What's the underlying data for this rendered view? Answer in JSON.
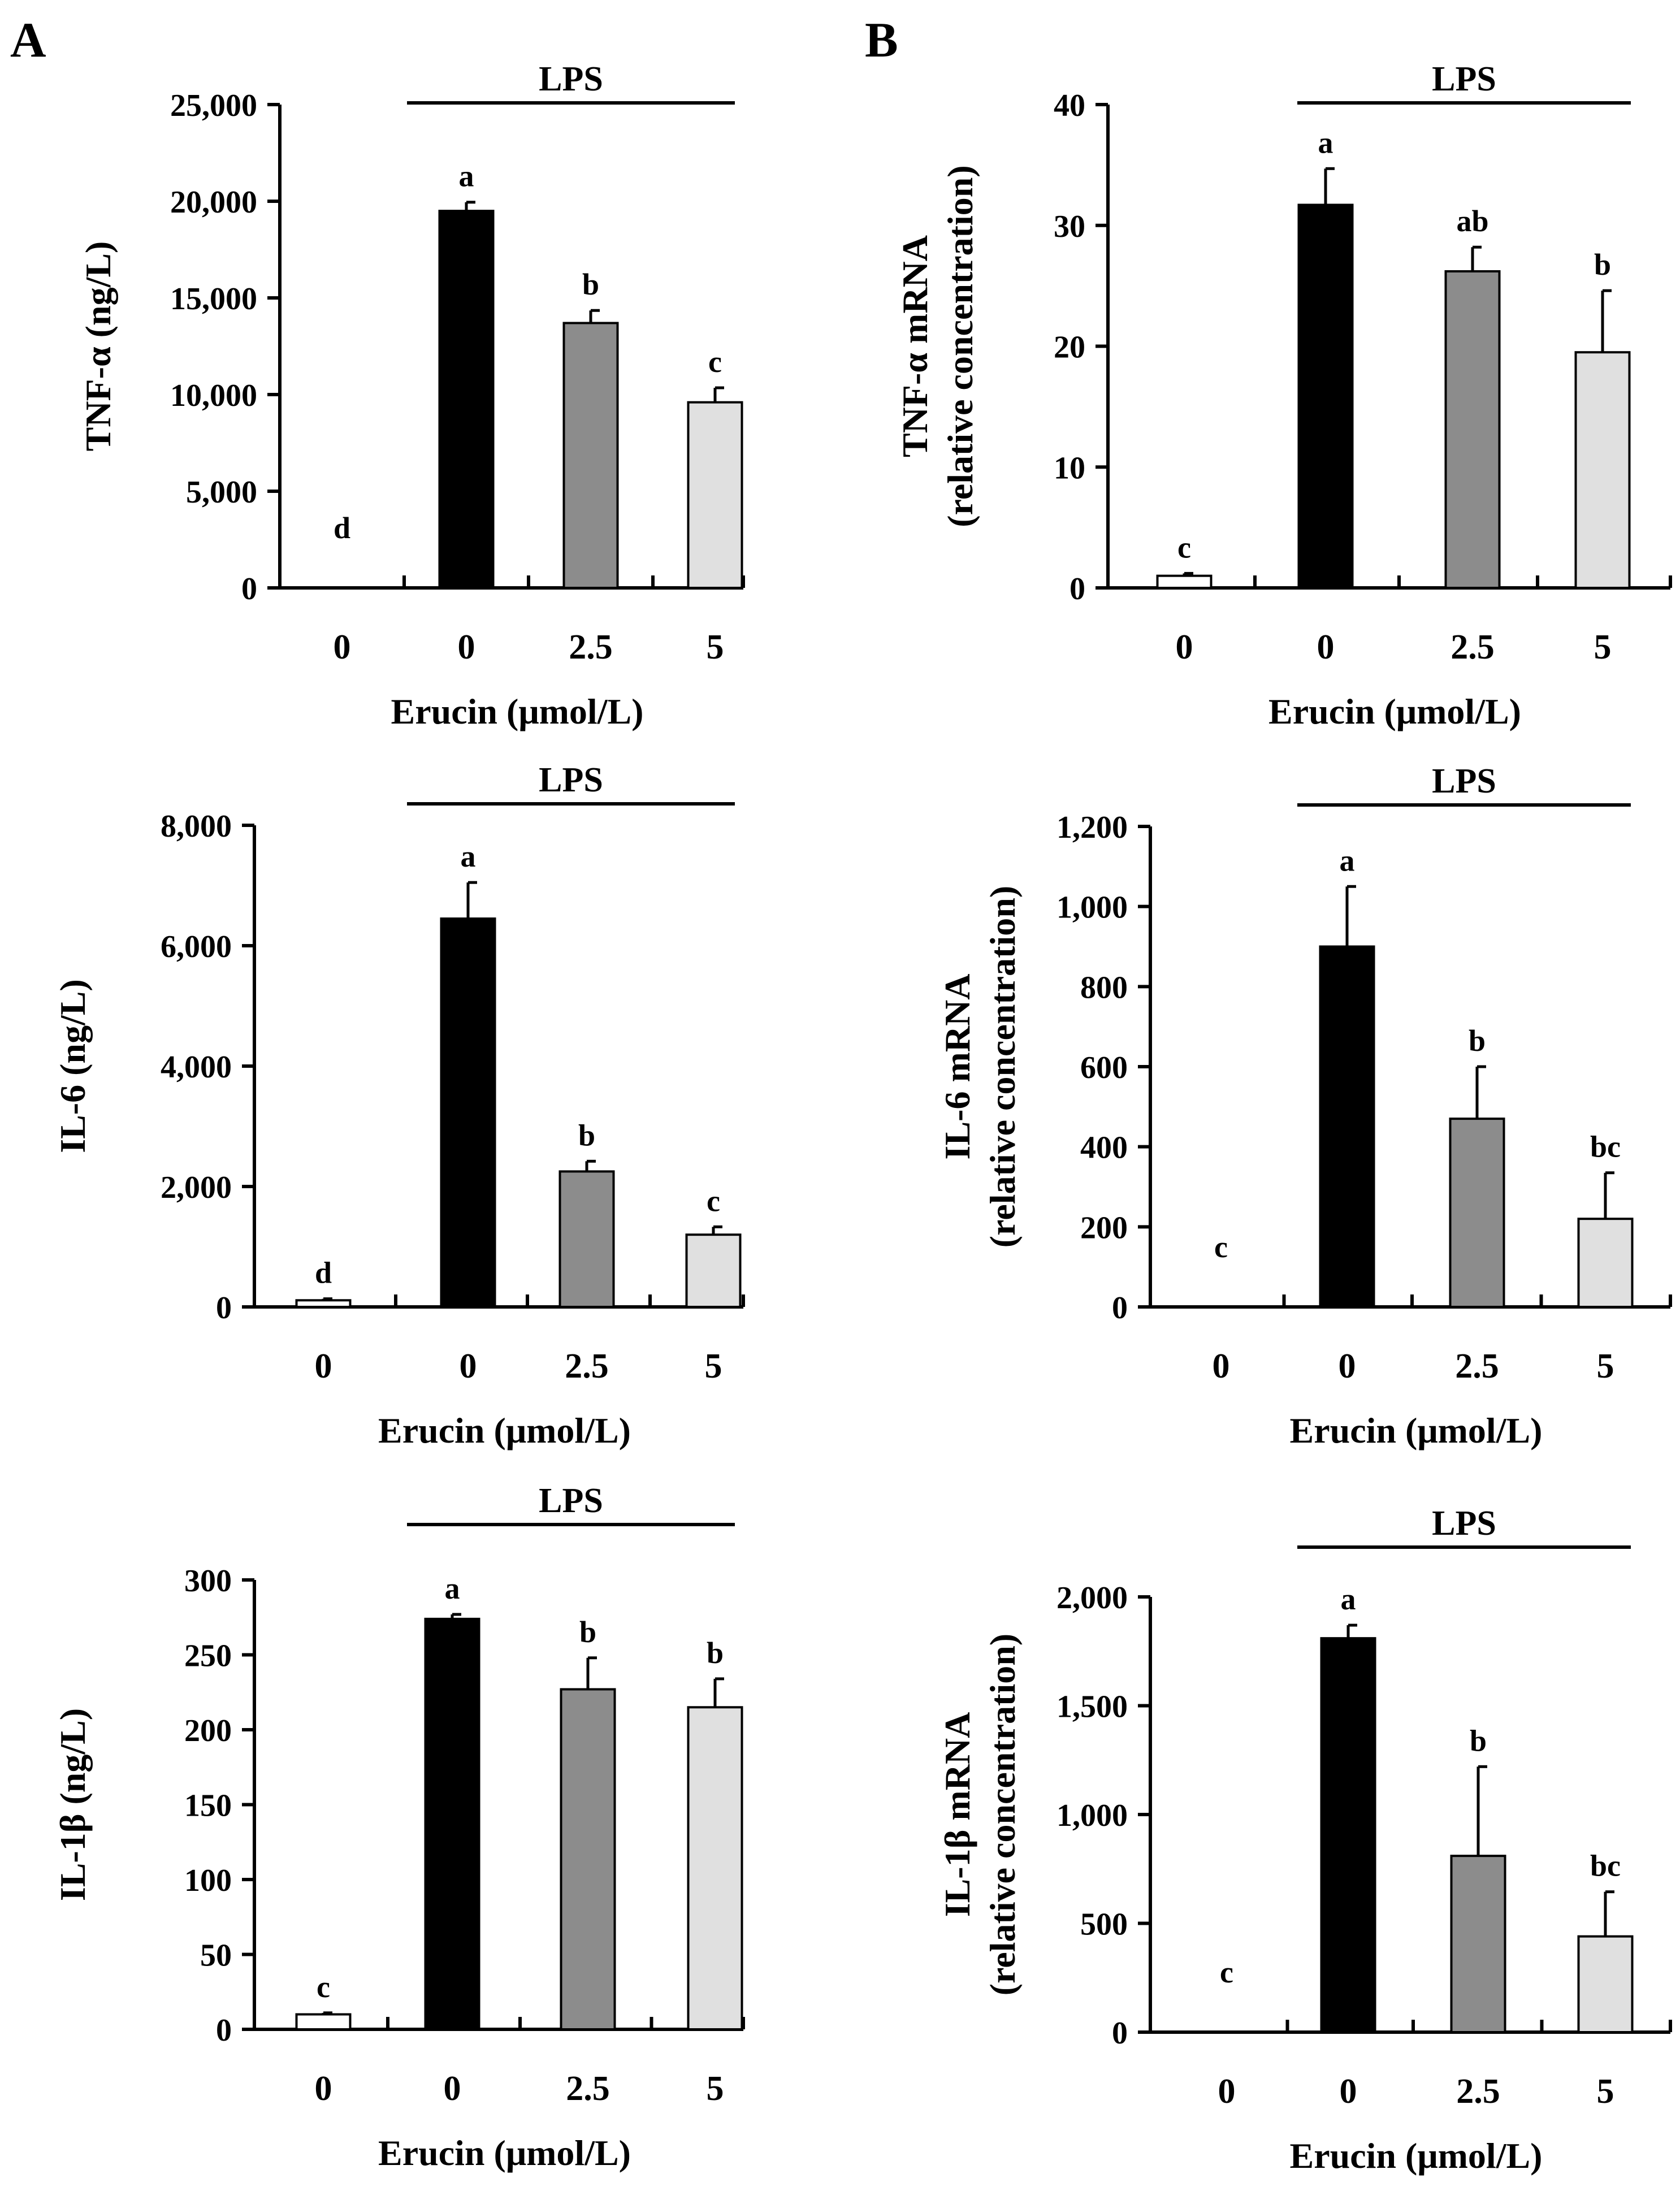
{
  "panels": {
    "A": "A",
    "B": "B"
  },
  "chart_data": [
    {
      "id": "a1",
      "type": "bar",
      "panel": "A",
      "title": "",
      "ylabel": [
        "TNF-α (ng/L)"
      ],
      "xlabel": "Erucin (μmol/L)",
      "bracket_label": "LPS",
      "categories": [
        "0",
        "0",
        "2.5",
        "5"
      ],
      "values": [
        0,
        19500,
        13700,
        9600
      ],
      "errors": [
        0,
        450,
        650,
        750
      ],
      "letters": [
        "d",
        "a",
        "b",
        "c"
      ],
      "ylim": [
        0,
        25000
      ],
      "yticks": [
        0,
        5000,
        10000,
        15000,
        20000,
        25000
      ],
      "ytick_labels": [
        "0",
        "5,000",
        "10,000",
        "15,000",
        "20,000",
        "25,000"
      ],
      "fills": [
        "#ffffff",
        "#000000",
        "#8c8c8c",
        "#e0e0e0"
      ]
    },
    {
      "id": "b1",
      "type": "bar",
      "panel": "B",
      "title": "",
      "ylabel": [
        "TNF-α mRNA",
        "(relative concentration)"
      ],
      "xlabel": "Erucin (μmol/L)",
      "bracket_label": "LPS",
      "categories": [
        "0",
        "0",
        "2.5",
        "5"
      ],
      "values": [
        1,
        31.7,
        26.2,
        19.5
      ],
      "errors": [
        0.2,
        3.0,
        2.0,
        5.1
      ],
      "letters": [
        "c",
        "a",
        "ab",
        "b"
      ],
      "ylim": [
        0,
        40
      ],
      "yticks": [
        0,
        10,
        20,
        30,
        40
      ],
      "ytick_labels": [
        "0",
        "10",
        "20",
        "30",
        "40"
      ],
      "fills": [
        "#ffffff",
        "#000000",
        "#8c8c8c",
        "#e0e0e0"
      ]
    },
    {
      "id": "a2",
      "type": "bar",
      "panel": "A",
      "title": "",
      "ylabel": [
        "IL-6 (ng/L)"
      ],
      "xlabel": "Erucin (μmol/L)",
      "bracket_label": "LPS",
      "categories": [
        "0",
        "0",
        "2.5",
        "5"
      ],
      "values": [
        110,
        6450,
        2250,
        1200
      ],
      "errors": [
        25,
        600,
        170,
        130
      ],
      "letters": [
        "d",
        "a",
        "b",
        "c"
      ],
      "ylim": [
        0,
        8000
      ],
      "yticks": [
        0,
        2000,
        4000,
        6000,
        8000
      ],
      "ytick_labels": [
        "0",
        "2,000",
        "4,000",
        "6,000",
        "8,000"
      ],
      "fills": [
        "#ffffff",
        "#000000",
        "#8c8c8c",
        "#e0e0e0"
      ]
    },
    {
      "id": "b2",
      "type": "bar",
      "panel": "B",
      "title": "",
      "ylabel": [
        "IL-6 mRNA",
        "(relative concentration)"
      ],
      "xlabel": "Erucin (μmol/L)",
      "bracket_label": "LPS",
      "categories": [
        "0",
        "0",
        "2.5",
        "5"
      ],
      "values": [
        0,
        900,
        470,
        220
      ],
      "errors": [
        0,
        150,
        130,
        115
      ],
      "letters": [
        "c",
        "a",
        "b",
        "bc"
      ],
      "ylim": [
        0,
        1200
      ],
      "yticks": [
        0,
        200,
        400,
        600,
        800,
        1000,
        1200
      ],
      "ytick_labels": [
        "0",
        "200",
        "400",
        "600",
        "800",
        "1,000",
        "1,200"
      ],
      "fills": [
        "#ffffff",
        "#000000",
        "#8c8c8c",
        "#e0e0e0"
      ]
    },
    {
      "id": "a3",
      "type": "bar",
      "panel": "A",
      "title": "",
      "ylabel": [
        "IL-1β (ng/L)"
      ],
      "xlabel": "Erucin (μmol/L)",
      "bracket_label": "LPS",
      "categories": [
        "0",
        "0",
        "2.5",
        "5"
      ],
      "values": [
        10,
        274,
        227,
        215
      ],
      "errors": [
        1,
        3,
        21,
        19
      ],
      "letters": [
        "c",
        "a",
        "b",
        "b"
      ],
      "ylim": [
        0,
        300
      ],
      "yticks": [
        0,
        50,
        100,
        150,
        200,
        250,
        300
      ],
      "ytick_labels": [
        "0",
        "50",
        "100",
        "150",
        "200",
        "250",
        "300"
      ],
      "fills": [
        "#ffffff",
        "#000000",
        "#8c8c8c",
        "#e0e0e0"
      ]
    },
    {
      "id": "b3",
      "type": "bar",
      "panel": "B",
      "title": "",
      "ylabel": [
        "IL-1β mRNA",
        "(relative concentration)"
      ],
      "xlabel": "Erucin (μmol/L)",
      "bracket_label": "LPS",
      "categories": [
        "0",
        "0",
        "2.5",
        "5"
      ],
      "values": [
        0,
        1810,
        810,
        440
      ],
      "errors": [
        0,
        60,
        410,
        205
      ],
      "letters": [
        "c",
        "a",
        "b",
        "bc"
      ],
      "ylim": [
        0,
        2000
      ],
      "yticks": [
        0,
        500,
        1000,
        1500,
        2000
      ],
      "ytick_labels": [
        "0",
        "500",
        "1,000",
        "1,500",
        "2,000"
      ],
      "fills": [
        "#ffffff",
        "#000000",
        "#8c8c8c",
        "#e0e0e0"
      ]
    }
  ]
}
